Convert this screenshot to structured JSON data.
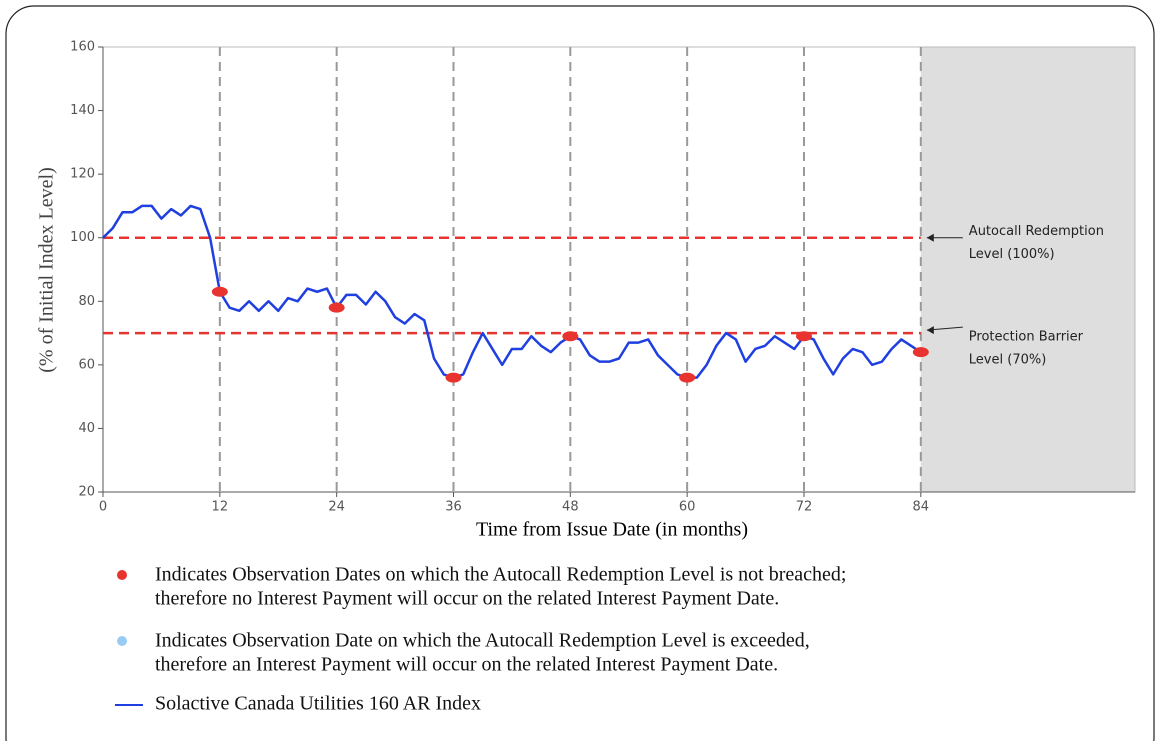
{
  "chart_data": {
    "type": "line",
    "xlabel": "Time from Issue Date (in months)",
    "ylabel": "(% of Initial Index Level)",
    "xlim": [
      0,
      106
    ],
    "ylim": [
      20,
      160
    ],
    "xticks": [
      0,
      12,
      24,
      36,
      48,
      60,
      72,
      84
    ],
    "yticks": [
      20,
      40,
      60,
      80,
      100,
      120,
      140,
      160
    ],
    "vlines": [
      12,
      24,
      36,
      48,
      60,
      72,
      84
    ],
    "shade": [
      84,
      106
    ],
    "hlines": [
      {
        "value": 100,
        "color": "#e8332e",
        "lines": [
          "Autocall Redemption",
          "Level (100%)"
        ]
      },
      {
        "value": 70,
        "color": "#e8332e",
        "lines": [
          "Protection Barrier",
          "Level (70%)"
        ]
      }
    ],
    "series": [
      {
        "name": "Solactive Canada Utilities 160 AR Index",
        "color": "#1f3fe0",
        "x": [
          0,
          1,
          2,
          3,
          4,
          5,
          6,
          7,
          8,
          9,
          10,
          11,
          12,
          13,
          14,
          15,
          16,
          17,
          18,
          19,
          20,
          21,
          22,
          23,
          24,
          25,
          26,
          27,
          28,
          29,
          30,
          31,
          32,
          33,
          34,
          35,
          36,
          37,
          38,
          39,
          40,
          41,
          42,
          43,
          44,
          45,
          46,
          47,
          48,
          49,
          50,
          51,
          52,
          53,
          54,
          55,
          56,
          57,
          58,
          59,
          60,
          61,
          62,
          63,
          64,
          65,
          66,
          67,
          68,
          69,
          70,
          71,
          72,
          73,
          74,
          75,
          76,
          77,
          78,
          79,
          80,
          81,
          82,
          83,
          84
        ],
        "values": [
          100,
          103,
          108,
          108,
          110,
          110,
          106,
          109,
          107,
          110,
          109,
          100,
          83,
          78,
          77,
          80,
          77,
          80,
          77,
          81,
          80,
          84,
          83,
          84,
          78,
          82,
          82,
          79,
          83,
          80,
          75,
          73,
          76,
          74,
          62,
          57,
          56,
          57,
          64,
          70,
          65,
          60,
          65,
          65,
          69,
          66,
          64,
          67,
          69,
          68,
          63,
          61,
          61,
          62,
          67,
          67,
          68,
          63,
          60,
          57,
          56,
          56,
          60,
          66,
          70,
          68,
          61,
          65,
          66,
          69,
          67,
          65,
          69,
          68,
          62,
          57,
          62,
          65,
          64,
          60,
          61,
          65,
          68,
          66,
          64
        ]
      }
    ],
    "markers": {
      "color": "#e8332e",
      "x": [
        12,
        24,
        36,
        48,
        60,
        72,
        84
      ],
      "values": [
        83,
        78,
        56,
        69,
        56,
        69,
        64
      ]
    },
    "notes": [
      {
        "color": "#e8332e",
        "lines": [
          "Indicates Observation Dates on which the Autocall Redemption Level is not breached;",
          "therefore no Interest Payment will occur on the related Interest Payment Date."
        ]
      },
      {
        "color": "#99ccf5",
        "lines": [
          "Indicates Observation Date on which the Autocall Redemption Level is exceeded,",
          "therefore an Interest Payment will occur on the related Interest Payment Date."
        ]
      }
    ]
  }
}
